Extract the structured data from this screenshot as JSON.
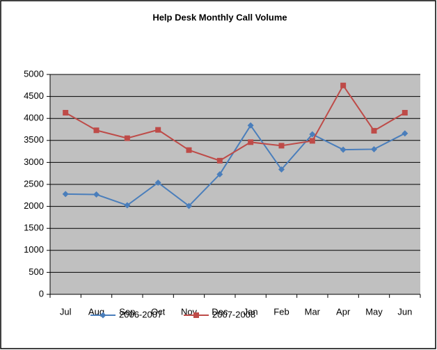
{
  "chart_data": {
    "type": "line",
    "title": "Help Desk Monthly Call Volume",
    "categories": [
      "Jul",
      "Aug",
      "Sep",
      "Oct",
      "Nov",
      "Dec",
      "Jan",
      "Feb",
      "Mar",
      "Apr",
      "May",
      "Jun"
    ],
    "series": [
      {
        "name": "2006-2007",
        "color": "#4a7ebb",
        "marker": "diamond",
        "values": [
          2280,
          2270,
          2025,
          2540,
          2010,
          2730,
          3840,
          2840,
          3640,
          3290,
          3300,
          3660
        ]
      },
      {
        "name": "2007-2008",
        "color": "#be4b48",
        "marker": "square",
        "values": [
          4130,
          3730,
          3550,
          3740,
          3280,
          3040,
          3460,
          3380,
          3490,
          4750,
          3720,
          4130
        ]
      }
    ],
    "ylim": [
      0,
      5000
    ],
    "yticks": [
      0,
      500,
      1000,
      1500,
      2000,
      2500,
      3000,
      3500,
      4000,
      4500,
      5000
    ],
    "grid": true,
    "legend": "bottom"
  }
}
